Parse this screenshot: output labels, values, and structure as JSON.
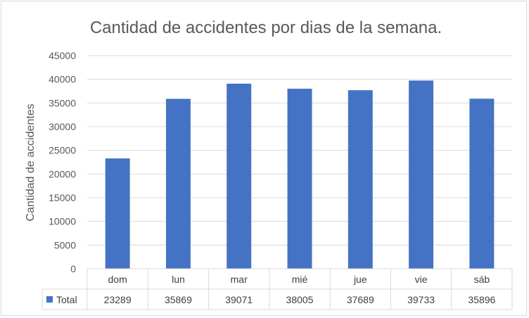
{
  "chart_data": {
    "type": "bar",
    "title": "Cantidad de accidentes por dias de la semana.",
    "xlabel": "",
    "ylabel": "Cantidad de accidentes",
    "ylim": [
      0,
      45000
    ],
    "ystep": 5000,
    "yticks": [
      "0",
      "5000",
      "10000",
      "15000",
      "20000",
      "25000",
      "30000",
      "35000",
      "40000",
      "45000"
    ],
    "categories": [
      "dom",
      "lun",
      "mar",
      "mié",
      "jue",
      "vie",
      "sáb"
    ],
    "series": [
      {
        "name": "Total",
        "values": [
          23289,
          35869,
          39071,
          38005,
          37689,
          39733,
          35896
        ]
      }
    ],
    "value_labels": [
      "23289",
      "35869",
      "39071",
      "38005",
      "37689",
      "39733",
      "35896"
    ],
    "grid": true,
    "legend": "data-table",
    "bar_color": "#4472c4",
    "grid_color": "#d9d9d9",
    "text_color": "#595959"
  }
}
